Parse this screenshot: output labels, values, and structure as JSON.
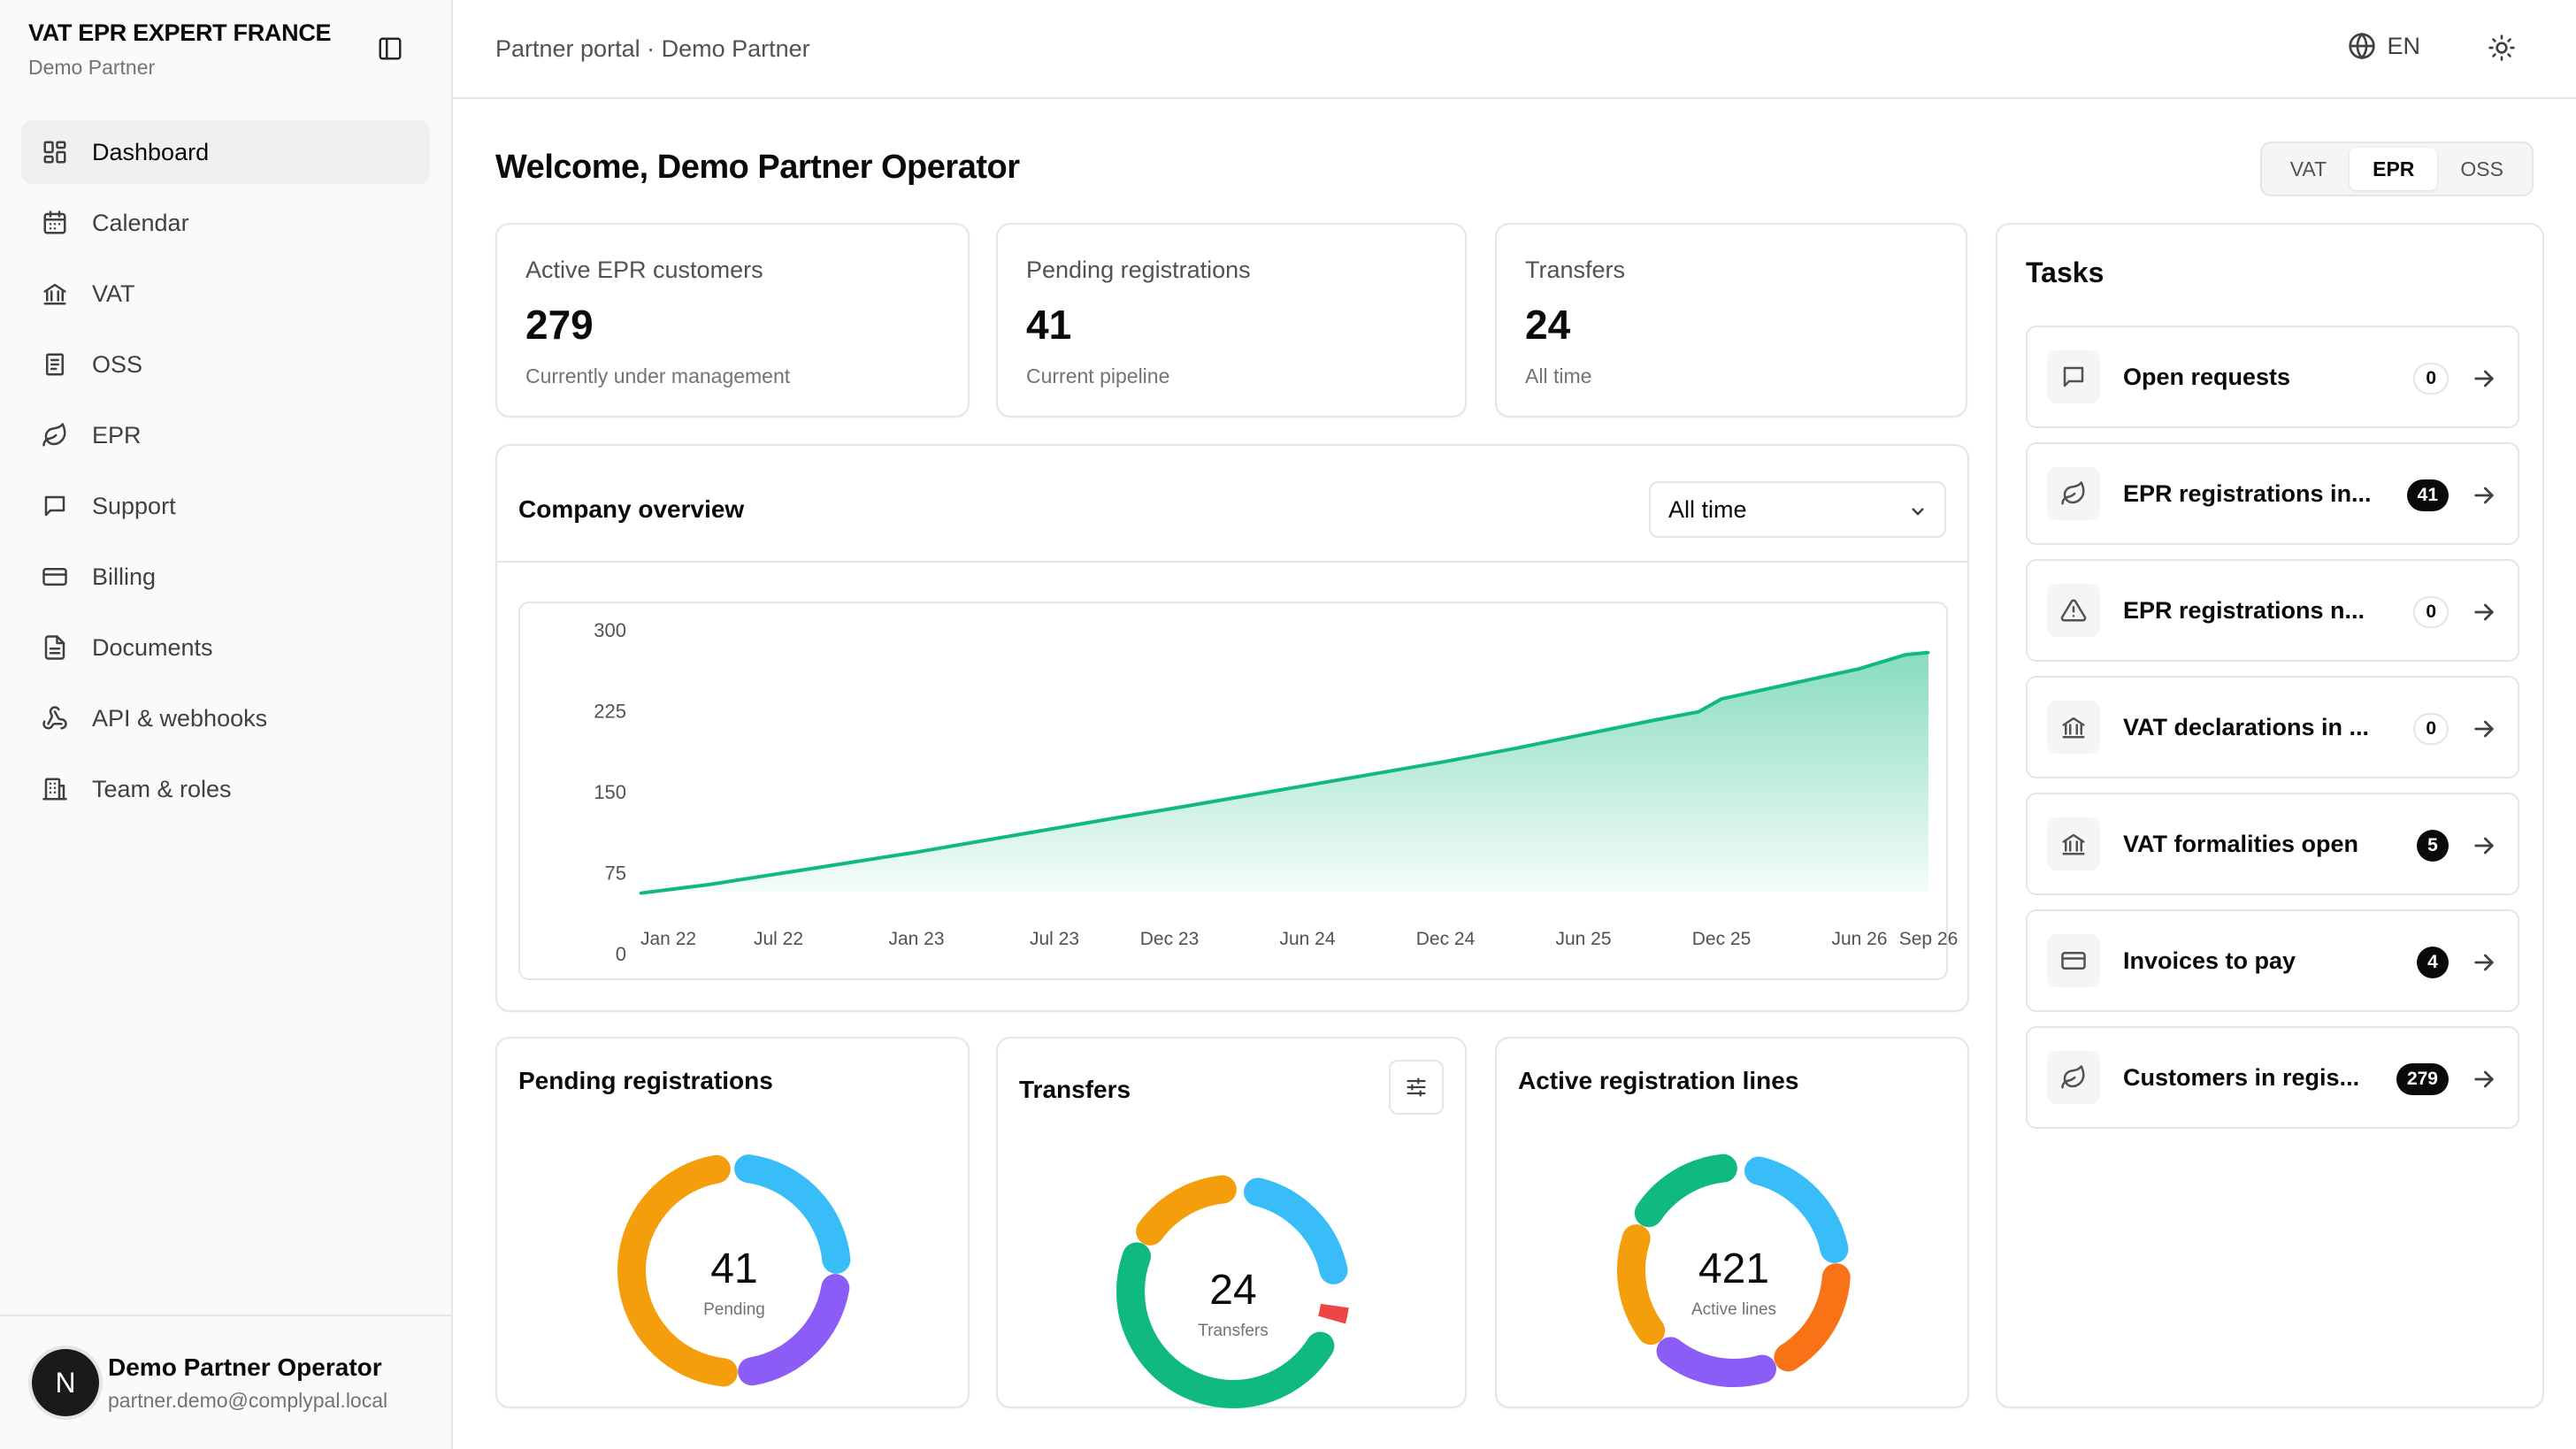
{
  "sidebar": {
    "brand_title": "VAT EPR EXPERT FRANCE",
    "brand_subtitle": "Demo Partner",
    "items": [
      {
        "label": "Dashboard",
        "icon": "dashboard-icon"
      },
      {
        "label": "Calendar",
        "icon": "calendar-icon"
      },
      {
        "label": "VAT",
        "icon": "bank-icon"
      },
      {
        "label": "OSS",
        "icon": "receipt-icon"
      },
      {
        "label": "EPR",
        "icon": "leaf-icon"
      },
      {
        "label": "Support",
        "icon": "message-icon"
      },
      {
        "label": "Billing",
        "icon": "card-icon"
      },
      {
        "label": "Documents",
        "icon": "document-icon"
      },
      {
        "label": "API & webhooks",
        "icon": "webhook-icon"
      },
      {
        "label": "Team & roles",
        "icon": "building-icon"
      }
    ],
    "user": {
      "initial": "N",
      "name": "Demo Partner Operator",
      "email": "partner.demo@complypal.local"
    }
  },
  "header": {
    "breadcrumb": "Partner portal · Demo Partner",
    "language": "EN"
  },
  "main": {
    "welcome": "Welcome, Demo Partner Operator",
    "segments": [
      {
        "label": "VAT",
        "active": false
      },
      {
        "label": "EPR",
        "active": true
      },
      {
        "label": "OSS",
        "active": false
      }
    ],
    "stats": [
      {
        "label": "Active EPR customers",
        "value": "279",
        "sub": "Currently under management"
      },
      {
        "label": "Pending registrations",
        "value": "41",
        "sub": "Current pipeline"
      },
      {
        "label": "Transfers",
        "value": "24",
        "sub": "All time"
      }
    ],
    "overview": {
      "title": "Company overview",
      "range": "All time"
    },
    "donuts": [
      {
        "title": "Pending registrations",
        "value": "41",
        "caption": "Pending"
      },
      {
        "title": "Transfers",
        "value": "24",
        "caption": "Transfers"
      },
      {
        "title": "Active registration lines",
        "value": "421",
        "caption": "Active lines"
      }
    ]
  },
  "tasks": {
    "title": "Tasks",
    "items": [
      {
        "label": "Open requests",
        "count": "0",
        "icon": "message-icon"
      },
      {
        "label": "EPR registrations in...",
        "count": "41",
        "icon": "leaf-icon"
      },
      {
        "label": "EPR registrations n...",
        "count": "0",
        "icon": "warning-icon"
      },
      {
        "label": "VAT declarations in ...",
        "count": "0",
        "icon": "bank-icon"
      },
      {
        "label": "VAT formalities open",
        "count": "5",
        "icon": "bank-icon"
      },
      {
        "label": "Invoices to pay",
        "count": "4",
        "icon": "card-icon"
      },
      {
        "label": "Customers in regis...",
        "count": "279",
        "icon": "leaf-icon"
      }
    ]
  },
  "colors": {
    "accent": "#10b981",
    "amber": "#f59e0b",
    "sky": "#38bdf8",
    "violet": "#8b5cf6",
    "red": "#ef4444",
    "green": "#10b981",
    "orange": "#f97316"
  },
  "chart_data": {
    "type": "area",
    "title": "Company overview",
    "x_ticks": [
      "Jan 22",
      "Jul 22",
      "Jan 23",
      "Jul 23",
      "Dec 23",
      "Jun 24",
      "Dec 24",
      "Jun 25",
      "Dec 25",
      "Jun 26",
      "Sep 26"
    ],
    "y_ticks": [
      "0",
      "75",
      "150",
      "225",
      "300"
    ],
    "ylim": [
      0,
      300
    ],
    "x": [
      "2022-01",
      "2022-04",
      "2022-07",
      "2022-10",
      "2023-01",
      "2023-04",
      "2023-07",
      "2023-10",
      "2023-12",
      "2024-03",
      "2024-06",
      "2024-09",
      "2024-12",
      "2025-03",
      "2025-06",
      "2025-09",
      "2025-11",
      "2025-12",
      "2026-03",
      "2026-06",
      "2026-08",
      "2026-09"
    ],
    "values": [
      56,
      64,
      74,
      84,
      94,
      105,
      116,
      127,
      134,
      145,
      156,
      167,
      178,
      190,
      203,
      216,
      224,
      236,
      250,
      264,
      277,
      279
    ],
    "grid": false,
    "legend": "none"
  }
}
